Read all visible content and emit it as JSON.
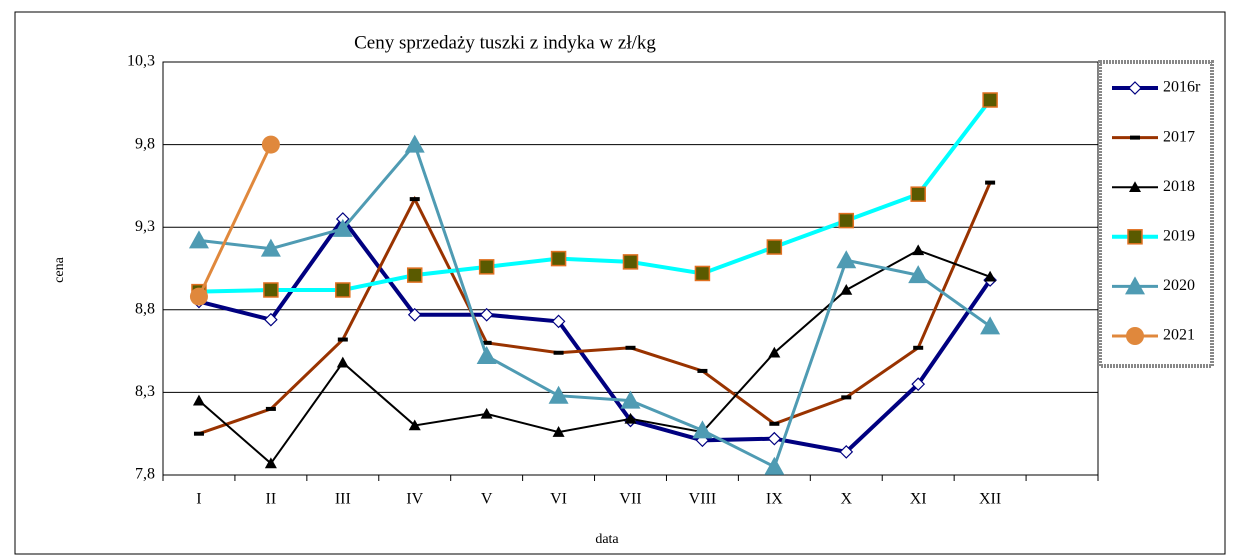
{
  "chart_data": {
    "type": "line",
    "title": "Ceny sprzedaży tuszki z indyka w zł/kg",
    "x_label": "data",
    "y_label": "cena",
    "categories": [
      "I",
      "II",
      "III",
      "IV",
      "V",
      "VI",
      "VII",
      "VIII",
      "IX",
      "X",
      "XI",
      "XII",
      null
    ],
    "ylim": [
      7.8,
      10.3
    ],
    "yticks": [
      {
        "value": 7.8,
        "label": "7,8"
      },
      {
        "value": 8.3,
        "label": "8,3"
      },
      {
        "value": 8.8,
        "label": "8,8"
      },
      {
        "value": 9.3,
        "label": "9,3"
      },
      {
        "value": 9.8,
        "label": "9,8"
      },
      {
        "value": 10.3,
        "label": "10,3"
      }
    ],
    "grid": true,
    "legend": "right",
    "series": [
      {
        "name": "2016r",
        "color": "#000080",
        "marker": "diamond",
        "values": [
          8.85,
          8.74,
          9.35,
          8.77,
          8.77,
          8.73,
          8.13,
          8.01,
          8.02,
          7.94,
          8.35,
          8.98,
          null
        ]
      },
      {
        "name": "2017",
        "color": "#993300",
        "marker": "dash",
        "values": [
          8.05,
          8.2,
          8.62,
          9.47,
          8.6,
          8.54,
          8.57,
          8.43,
          8.11,
          8.27,
          8.57,
          9.57,
          null
        ]
      },
      {
        "name": "2018",
        "color": "#000000",
        "marker": "triangle",
        "values": [
          8.25,
          7.87,
          8.48,
          8.1,
          8.17,
          8.06,
          8.14,
          8.06,
          8.54,
          8.92,
          9.16,
          9.0,
          null
        ]
      },
      {
        "name": "2019",
        "color": "#00ffff",
        "marker": "square",
        "values": [
          8.91,
          8.92,
          8.92,
          9.01,
          9.06,
          9.11,
          9.09,
          9.02,
          9.18,
          9.34,
          9.5,
          10.07,
          null
        ]
      },
      {
        "name": "2020",
        "color": "#4f9bb3",
        "marker": "triangle",
        "values": [
          9.22,
          9.17,
          9.29,
          9.8,
          8.52,
          8.28,
          8.25,
          8.07,
          7.85,
          9.1,
          9.01,
          8.7,
          null
        ]
      },
      {
        "name": "2021",
        "color": "#e0883c",
        "marker": "circle",
        "values": [
          8.88,
          9.8,
          null,
          null,
          null,
          null,
          null,
          null,
          null,
          null,
          null,
          null,
          null
        ]
      }
    ]
  }
}
